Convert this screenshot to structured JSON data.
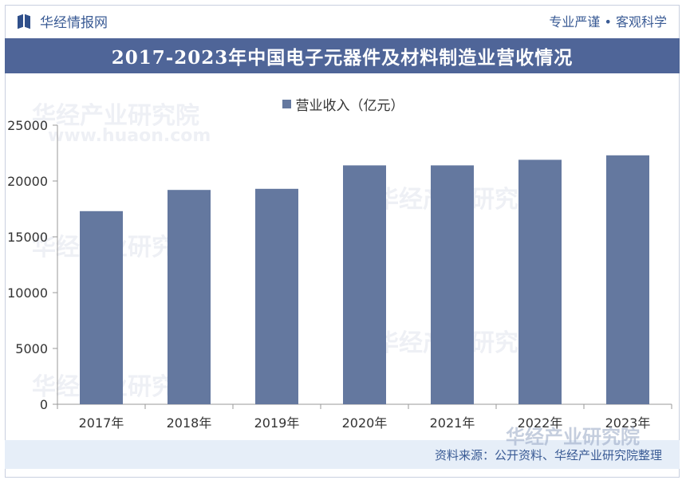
{
  "header": {
    "brand": "华经情报网",
    "slogan": "专业严谨 • 客观科学"
  },
  "watermark": {
    "text": "华经产业研究院",
    "url": "www.huaon.com"
  },
  "footer": {
    "source": "资料来源：公开资料、华经产业研究院整理"
  },
  "colors": {
    "bar": "#64789f",
    "title_band": "#4f6598",
    "brand": "#3a5b95"
  },
  "chart_data": {
    "type": "bar",
    "title": "2017-2023年中国电子元器件及材料制造业营收情况",
    "categories": [
      "2017年",
      "2018年",
      "2019年",
      "2020年",
      "2021年",
      "2022年",
      "2023年"
    ],
    "series": [
      {
        "name": "营业收入（亿元）",
        "values": [
          17300,
          19200,
          19300,
          21400,
          21400,
          21900,
          22300
        ]
      }
    ],
    "ylim": [
      0,
      25000
    ],
    "yticks": [
      0,
      5000,
      10000,
      15000,
      20000,
      25000
    ],
    "grid": false,
    "legend": "top-center"
  }
}
